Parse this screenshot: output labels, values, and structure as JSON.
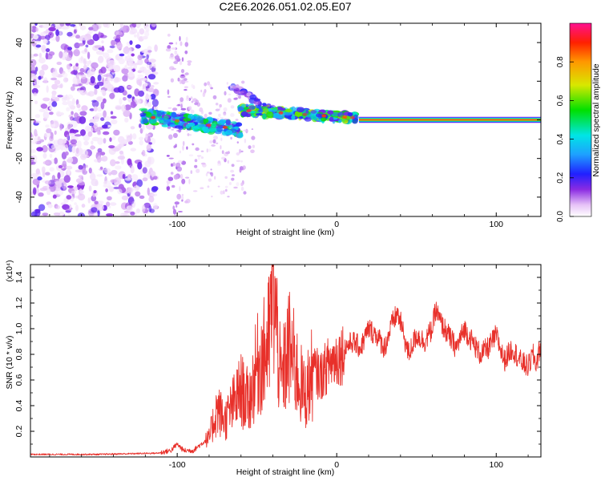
{
  "title": "C2E6.2026.051.02.05.E07",
  "chart_data": [
    {
      "type": "heatmap",
      "name": "spectrogram",
      "xlabel": "Height of straight line (km)",
      "ylabel": "Frequency (Hz)",
      "xlim": [
        -192,
        128
      ],
      "ylim": [
        -50,
        50
      ],
      "xticks": [
        -100,
        0,
        100
      ],
      "xtick_labels": [
        "-100",
        "0",
        "100"
      ],
      "yticks": [
        -40,
        -20,
        0,
        20,
        40
      ],
      "ytick_labels": [
        "-40",
        "-20",
        "0",
        "20",
        "40"
      ],
      "colorbar": {
        "label": "Normalized spectral amplitude",
        "range": [
          0,
          1
        ],
        "ticks": [
          0.0,
          0.2,
          0.4,
          0.6,
          0.8
        ],
        "tick_labels": [
          "0.0",
          "0.2",
          "0.4",
          "0.6",
          "0.8"
        ]
      },
      "regions": [
        {
          "name": "scattered noise",
          "x_range": [
            -192,
            -113
          ],
          "f_range": [
            -50,
            50
          ],
          "amplitude": 0.1
        },
        {
          "name": "sparse noise",
          "x_range": [
            -106,
            -92
          ],
          "f_range": [
            -50,
            45
          ],
          "amplitude": 0.05
        },
        {
          "name": "onset track",
          "x_range": [
            -122,
            -60
          ],
          "f_start": 2,
          "f_end": -5,
          "amplitude": 0.5
        },
        {
          "name": "echo band",
          "x_range": [
            -66,
            -40
          ],
          "f_start": 18,
          "f_end": 5,
          "amplitude": 0.2
        },
        {
          "name": "broad track",
          "x_range": [
            -60,
            12
          ],
          "f_start": 5,
          "f_end": 1,
          "amplitude": 0.6
        },
        {
          "name": "carrier line",
          "x_range": [
            14,
            128
          ],
          "f_start": 0,
          "f_end": 0,
          "amplitude": 1.0
        }
      ]
    },
    {
      "type": "line",
      "name": "snr",
      "xlabel": "Height of straight line (km)",
      "ylabel": "SNR (10 * v/v)",
      "y_multiplier": "(x10⁴)",
      "color": "#e8302a",
      "xlim": [
        -192,
        128
      ],
      "ylim": [
        0,
        1.5
      ],
      "xticks": [
        -100,
        0,
        100
      ],
      "xtick_labels": [
        "-100",
        "0",
        "100"
      ],
      "yticks": [
        0.2,
        0.4,
        0.6,
        0.8,
        1.0,
        1.2,
        1.4
      ],
      "ytick_labels": [
        "0.2",
        "0.4",
        "0.6",
        "0.8",
        "1.0",
        "1.2",
        "1.4"
      ],
      "series": [
        {
          "name": "SNR envelope",
          "x": [
            -192,
            -150,
            -112,
            -104,
            -100,
            -96,
            -90,
            -80,
            -75,
            -70,
            -60,
            -55,
            -50,
            -45,
            -42,
            -40,
            -35,
            -30,
            -25,
            -20,
            -15,
            -10,
            -5,
            0,
            5,
            10,
            15,
            20,
            25,
            30,
            35,
            38,
            40,
            45,
            50,
            55,
            60,
            62,
            65,
            70,
            75,
            80,
            85,
            90,
            95,
            100,
            105,
            110,
            115,
            120,
            123,
            125,
            128
          ],
          "values": [
            0.02,
            0.02,
            0.03,
            0.05,
            0.1,
            0.05,
            0.05,
            0.15,
            0.4,
            0.3,
            0.55,
            0.45,
            0.75,
            0.85,
            1.0,
            1.48,
            0.6,
            0.9,
            0.7,
            0.5,
            0.7,
            0.65,
            0.75,
            0.8,
            0.85,
            0.9,
            0.85,
            1.0,
            0.95,
            0.85,
            1.05,
            1.12,
            1.05,
            0.8,
            0.95,
            0.9,
            1.0,
            1.15,
            1.05,
            0.95,
            0.85,
            1.0,
            0.9,
            0.8,
            0.85,
            0.95,
            0.75,
            0.85,
            0.75,
            0.7,
            0.8,
            0.72,
            0.88
          ]
        }
      ]
    }
  ]
}
